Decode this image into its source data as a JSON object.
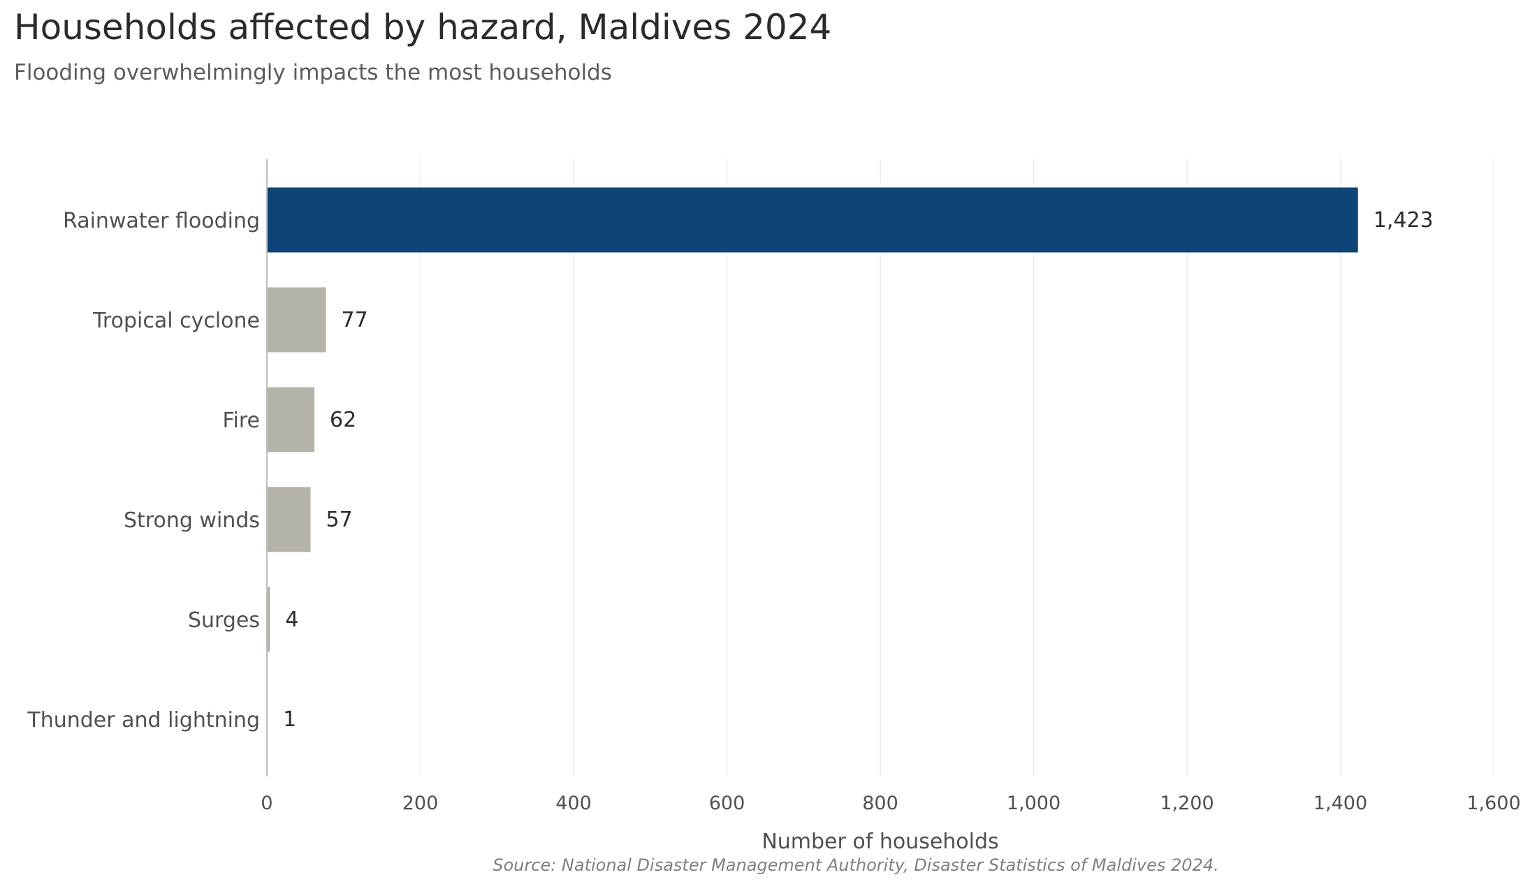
{
  "chart_data": {
    "type": "bar",
    "orientation": "horizontal",
    "title": "Households affected by hazard, Maldives 2024",
    "subtitle": "Flooding overwhelmingly impacts the most households",
    "categories": [
      "Rainwater flooding",
      "Tropical cyclone",
      "Fire",
      "Strong winds",
      "Surges",
      "Thunder and lightning"
    ],
    "values": [
      1423,
      77,
      62,
      57,
      4,
      1
    ],
    "value_labels": [
      "1,423",
      "77",
      "62",
      "57",
      "4",
      "1"
    ],
    "highlight_category": "Rainwater flooding",
    "xlabel": "Number of households",
    "ylabel": "",
    "xlim": [
      0,
      1600
    ],
    "xticks": [
      0,
      200,
      400,
      600,
      800,
      1000,
      1200,
      1400,
      1600
    ],
    "xtick_labels": [
      "0",
      "200",
      "400",
      "600",
      "800",
      "1,000",
      "1,200",
      "1,400",
      "1,600"
    ],
    "grid": "vertical",
    "legend": "none",
    "source": "Source: National Disaster Management Authority, Disaster Statistics of Maldives 2024.",
    "colors": {
      "highlight": "#0e4478",
      "other": "#b5b2a8",
      "grid": "#ececec",
      "axis": "#bfbfbf"
    }
  }
}
